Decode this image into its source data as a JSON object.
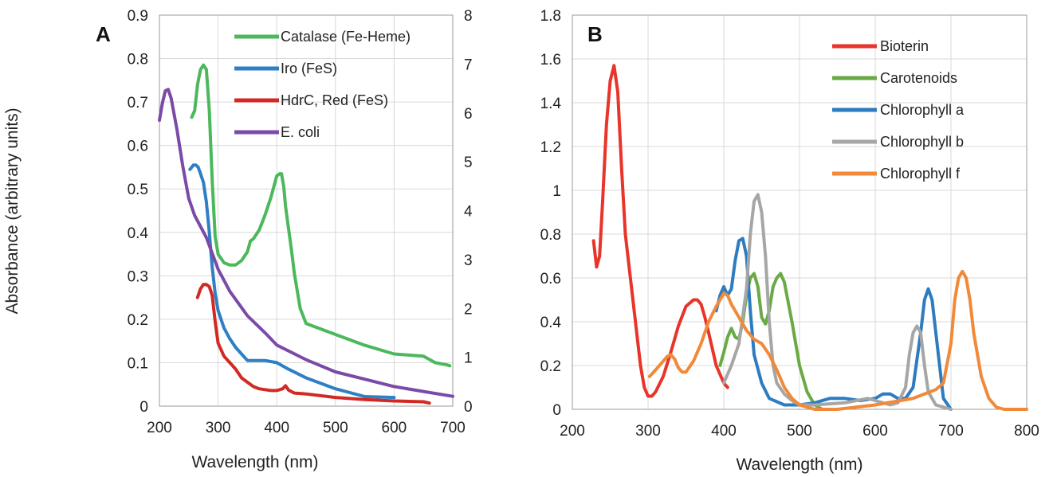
{
  "chart_data": [
    {
      "type": "line",
      "panel_label": "A",
      "xlabel": "Wavelength (nm)",
      "ylabel": "Absorbance (arbitrary units)",
      "xlim": [
        200,
        700
      ],
      "ylim": [
        0,
        0.9
      ],
      "y2lim": [
        0,
        8
      ],
      "x_ticks": [
        200,
        300,
        400,
        500,
        600,
        700
      ],
      "y_ticks": [
        "0",
        "0.1",
        "0.2",
        "0.3",
        "0.4",
        "0.5",
        "0.6",
        "0.7",
        "0.8",
        "0.9"
      ],
      "y2_ticks": [
        "0",
        "1",
        "2",
        "3",
        "4",
        "5",
        "6",
        "7",
        "8"
      ],
      "grid": true,
      "legend": "top-right",
      "series": [
        {
          "name": "Catalase (Fe-Heme)",
          "color": "#4cb85c",
          "axis": "y",
          "x": [
            255,
            260,
            265,
            270,
            275,
            280,
            285,
            290,
            295,
            300,
            305,
            310,
            320,
            330,
            340,
            350,
            355,
            360,
            370,
            380,
            390,
            395,
            400,
            405,
            408,
            412,
            415,
            420,
            425,
            430,
            440,
            450,
            470,
            500,
            550,
            600,
            650,
            670,
            690,
            695
          ],
          "y": [
            0.665,
            0.68,
            0.74,
            0.775,
            0.785,
            0.775,
            0.68,
            0.52,
            0.39,
            0.35,
            0.34,
            0.33,
            0.325,
            0.325,
            0.335,
            0.355,
            0.38,
            0.385,
            0.405,
            0.44,
            0.48,
            0.505,
            0.53,
            0.535,
            0.535,
            0.505,
            0.46,
            0.41,
            0.36,
            0.305,
            0.225,
            0.19,
            0.18,
            0.165,
            0.14,
            0.12,
            0.115,
            0.1,
            0.095,
            0.093
          ]
        },
        {
          "name": "Iro (FeS)",
          "color": "#2f7fc4",
          "axis": "y",
          "x": [
            252,
            258,
            262,
            266,
            270,
            275,
            280,
            285,
            290,
            295,
            300,
            310,
            320,
            330,
            340,
            350,
            360,
            380,
            400,
            420,
            450,
            500,
            550,
            600
          ],
          "y": [
            0.545,
            0.555,
            0.555,
            0.55,
            0.535,
            0.515,
            0.47,
            0.4,
            0.32,
            0.26,
            0.22,
            0.18,
            0.155,
            0.135,
            0.12,
            0.105,
            0.105,
            0.105,
            0.1,
            0.085,
            0.065,
            0.04,
            0.022,
            0.02
          ]
        },
        {
          "name": "HdrC, Red (FeS)",
          "color": "#d12a24",
          "axis": "y",
          "x": [
            265,
            270,
            275,
            280,
            285,
            290,
            295,
            300,
            310,
            320,
            330,
            340,
            350,
            360,
            370,
            380,
            390,
            400,
            410,
            415,
            420,
            430,
            450,
            500,
            550,
            600,
            650,
            660
          ],
          "y": [
            0.25,
            0.27,
            0.28,
            0.28,
            0.275,
            0.255,
            0.195,
            0.145,
            0.115,
            0.1,
            0.085,
            0.065,
            0.055,
            0.045,
            0.04,
            0.038,
            0.036,
            0.036,
            0.04,
            0.047,
            0.037,
            0.03,
            0.028,
            0.02,
            0.015,
            0.012,
            0.01,
            0.007
          ]
        },
        {
          "name": "E. coli",
          "color": "#7b4aa8",
          "axis": "y2",
          "x": [
            200,
            205,
            210,
            215,
            220,
            230,
            240,
            250,
            260,
            280,
            300,
            320,
            350,
            380,
            400,
            450,
            500,
            550,
            600,
            650,
            700
          ],
          "y": [
            5.85,
            6.2,
            6.45,
            6.48,
            6.3,
            5.65,
            4.9,
            4.25,
            3.9,
            3.45,
            2.8,
            2.35,
            1.85,
            1.5,
            1.25,
            0.95,
            0.7,
            0.55,
            0.4,
            0.3,
            0.2
          ]
        }
      ]
    },
    {
      "type": "line",
      "panel_label": "B",
      "xlabel": "Wavelength (nm)",
      "ylabel": "",
      "xlim": [
        200,
        800
      ],
      "ylim": [
        0,
        1.8
      ],
      "x_ticks": [
        200,
        300,
        400,
        500,
        600,
        700,
        800
      ],
      "y_ticks": [
        "0",
        "0.2",
        "0.4",
        "0.6",
        "0.8",
        "1",
        "1.2",
        "1.4",
        "1.6",
        "1.8"
      ],
      "grid": true,
      "legend": "top-right",
      "series": [
        {
          "name": "Bioterin",
          "color": "#e8342a",
          "x": [
            228,
            232,
            236,
            240,
            245,
            250,
            255,
            260,
            265,
            270,
            280,
            290,
            295,
            300,
            305,
            310,
            320,
            330,
            340,
            350,
            360,
            365,
            370,
            375,
            380,
            390,
            400,
            405
          ],
          "y": [
            0.77,
            0.65,
            0.7,
            0.95,
            1.3,
            1.5,
            1.57,
            1.45,
            1.1,
            0.8,
            0.5,
            0.2,
            0.1,
            0.06,
            0.06,
            0.08,
            0.15,
            0.26,
            0.38,
            0.47,
            0.5,
            0.5,
            0.48,
            0.42,
            0.35,
            0.2,
            0.12,
            0.1
          ]
        },
        {
          "name": "Carotenoids",
          "color": "#6aaa46",
          "x": [
            395,
            400,
            405,
            410,
            415,
            420,
            425,
            430,
            435,
            440,
            445,
            450,
            455,
            460,
            465,
            470,
            475,
            480,
            490,
            500,
            510,
            520,
            530
          ],
          "y": [
            0.2,
            0.26,
            0.33,
            0.37,
            0.33,
            0.32,
            0.4,
            0.52,
            0.6,
            0.62,
            0.56,
            0.42,
            0.39,
            0.45,
            0.56,
            0.6,
            0.62,
            0.58,
            0.4,
            0.2,
            0.08,
            0.02,
            0.0
          ]
        },
        {
          "name": "Chlorophyll  a",
          "color": "#2e7cc0",
          "x": [
            390,
            395,
            400,
            405,
            410,
            415,
            420,
            425,
            430,
            435,
            440,
            450,
            460,
            480,
            500,
            520,
            540,
            560,
            580,
            600,
            610,
            620,
            630,
            640,
            650,
            660,
            665,
            670,
            675,
            680,
            690,
            700
          ],
          "y": [
            0.45,
            0.52,
            0.56,
            0.52,
            0.55,
            0.68,
            0.77,
            0.78,
            0.7,
            0.45,
            0.25,
            0.12,
            0.05,
            0.02,
            0.02,
            0.03,
            0.05,
            0.05,
            0.04,
            0.05,
            0.07,
            0.07,
            0.05,
            0.05,
            0.1,
            0.35,
            0.5,
            0.55,
            0.5,
            0.35,
            0.05,
            0.0
          ]
        },
        {
          "name": "Chlorophyll b",
          "color": "#a6a6a6",
          "x": [
            400,
            410,
            420,
            430,
            435,
            440,
            445,
            450,
            455,
            460,
            465,
            470,
            480,
            490,
            500,
            520,
            560,
            590,
            600,
            610,
            620,
            630,
            640,
            645,
            650,
            655,
            660,
            665,
            670,
            680,
            700
          ],
          "y": [
            0.12,
            0.2,
            0.3,
            0.55,
            0.8,
            0.95,
            0.98,
            0.9,
            0.7,
            0.4,
            0.2,
            0.12,
            0.07,
            0.04,
            0.02,
            0.02,
            0.03,
            0.05,
            0.04,
            0.03,
            0.02,
            0.03,
            0.1,
            0.25,
            0.35,
            0.38,
            0.35,
            0.2,
            0.08,
            0.02,
            0.0
          ]
        },
        {
          "name": "Chlorophyll f",
          "color": "#f08a3a",
          "x": [
            302,
            310,
            320,
            325,
            330,
            335,
            340,
            345,
            350,
            360,
            370,
            380,
            390,
            395,
            400,
            405,
            410,
            420,
            430,
            440,
            450,
            460,
            470,
            480,
            490,
            500,
            520,
            550,
            600,
            650,
            680,
            690,
            700,
            705,
            710,
            715,
            720,
            725,
            730,
            740,
            750,
            760,
            770,
            780,
            800
          ],
          "y": [
            0.15,
            0.18,
            0.22,
            0.24,
            0.25,
            0.23,
            0.19,
            0.17,
            0.17,
            0.22,
            0.3,
            0.4,
            0.47,
            0.5,
            0.53,
            0.52,
            0.48,
            0.42,
            0.36,
            0.32,
            0.3,
            0.25,
            0.18,
            0.1,
            0.05,
            0.02,
            0.0,
            0.0,
            0.02,
            0.05,
            0.09,
            0.12,
            0.3,
            0.5,
            0.6,
            0.63,
            0.6,
            0.5,
            0.35,
            0.15,
            0.05,
            0.01,
            0.0,
            0.0,
            0.0
          ]
        }
      ]
    }
  ]
}
